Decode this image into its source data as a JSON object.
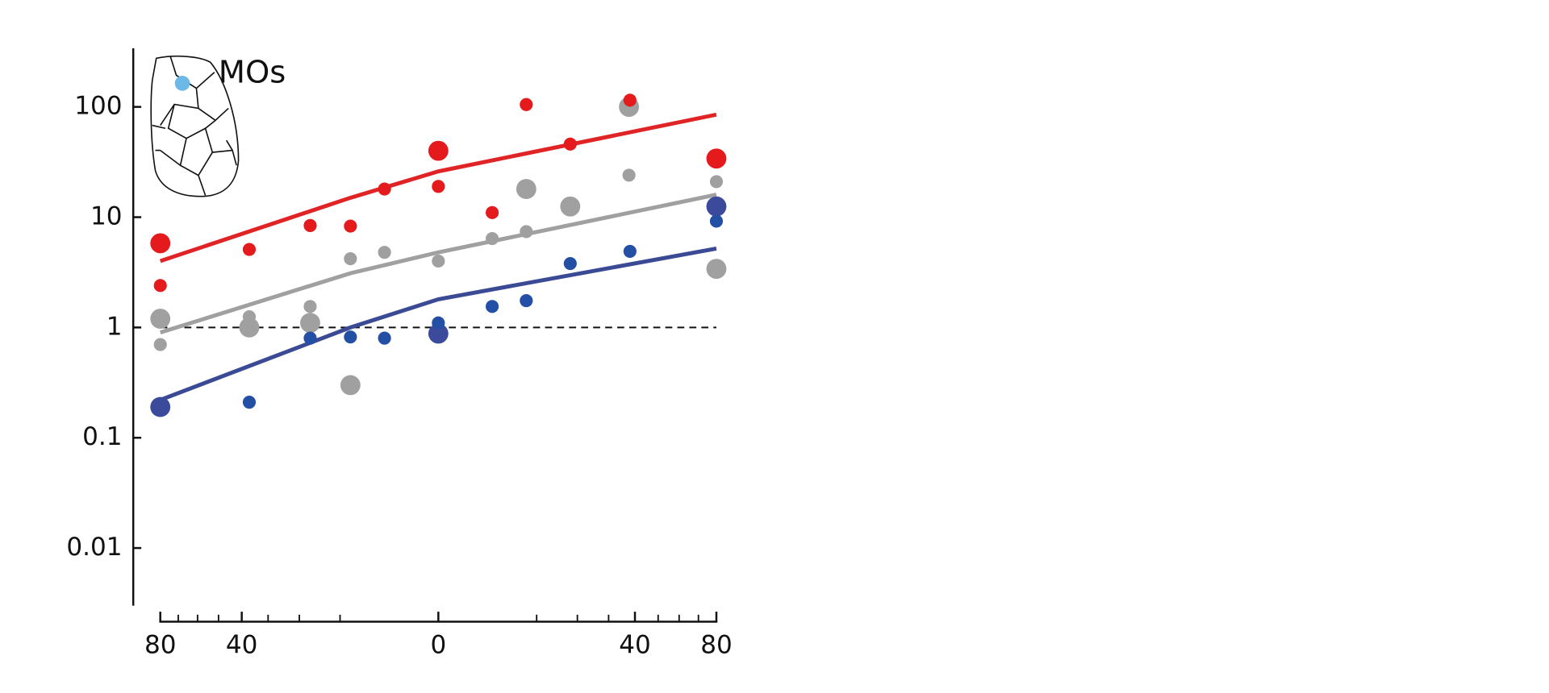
{
  "chart_data": {
    "type": "scatter",
    "annotation": "MOs",
    "xscale": "sqrt",
    "yscale": "log",
    "xlim": [
      -80,
      80
    ],
    "ylim": [
      0.003,
      340
    ],
    "xticks": [
      {
        "value": -80,
        "label": "80"
      },
      {
        "value": -40,
        "label": "40"
      },
      0,
      40,
      80
    ],
    "xminor_ticks": [
      -70,
      -60,
      -50,
      -30,
      -20,
      -10,
      10,
      20,
      30,
      50,
      60,
      70
    ],
    "yticks": [
      0.01,
      0.1,
      1,
      10,
      100
    ],
    "reference_line": 1,
    "series": [
      {
        "type": "line",
        "color": "#e02426",
        "x": [
          -80,
          -8,
          0,
          80
        ],
        "values": [
          4,
          15,
          26,
          85
        ]
      },
      {
        "type": "line",
        "color": "#a0a0a0",
        "x": [
          -80,
          -8,
          0,
          80
        ],
        "values": [
          0.9,
          3.1,
          4.8,
          16
        ]
      },
      {
        "type": "line",
        "color": "#3b4a94",
        "x": [
          -80,
          -8,
          0,
          80
        ],
        "values": [
          0.22,
          1.0,
          1.8,
          5.2
        ]
      },
      {
        "type": "scatter",
        "marker": "large",
        "color": "#a0a0a0",
        "x": [
          -80,
          -37,
          -17,
          -8,
          8,
          18,
          37.6,
          80
        ],
        "values": [
          1.2,
          1.0,
          1.1,
          0.3,
          18,
          12.5,
          100,
          3.4
        ]
      },
      {
        "type": "scatter",
        "marker": "small",
        "color": "#a0a0a0",
        "x": [
          -80,
          -37,
          -17,
          -8,
          -3,
          0,
          3,
          8,
          37.6,
          80
        ],
        "values": [
          0.7,
          1.25,
          1.55,
          4.2,
          4.8,
          4.0,
          6.4,
          7.4,
          24,
          21
        ]
      },
      {
        "type": "scatter",
        "marker": "large",
        "color": "#e41a1c",
        "x": [
          -80,
          0,
          80
        ],
        "values": [
          5.8,
          40,
          34
        ]
      },
      {
        "type": "scatter",
        "marker": "small",
        "color": "#e41a1c",
        "x": [
          -80,
          -37,
          -17,
          -8,
          -3,
          0,
          3,
          8,
          18,
          38
        ],
        "values": [
          2.4,
          5.1,
          8.4,
          8.3,
          18,
          19,
          11,
          105,
          46,
          115
        ]
      },
      {
        "type": "scatter",
        "marker": "large",
        "color": "#3b4a9a",
        "x": [
          -80,
          0,
          80
        ],
        "values": [
          0.19,
          0.88,
          12.5
        ]
      },
      {
        "type": "scatter",
        "marker": "small",
        "color": "#2350a5",
        "x": [
          -37,
          -17,
          -8,
          -3,
          0,
          3,
          8,
          18,
          38,
          80
        ],
        "values": [
          0.21,
          0.8,
          0.82,
          0.8,
          1.1,
          1.55,
          1.75,
          3.8,
          4.9,
          9.2
        ]
      }
    ]
  }
}
